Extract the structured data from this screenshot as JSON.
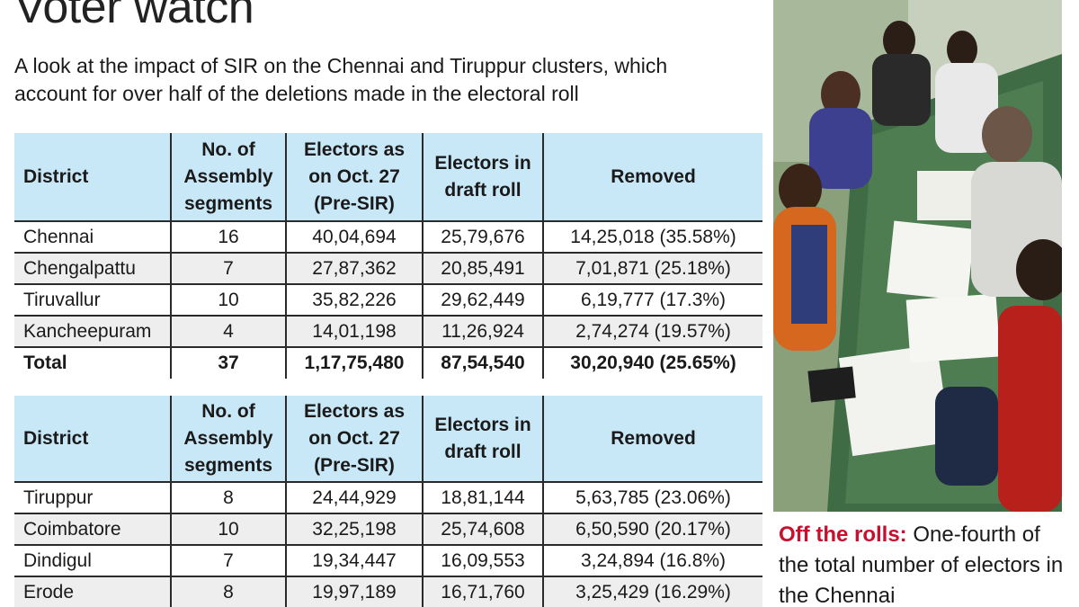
{
  "header": {
    "title": "Voter watch",
    "subtitle": "A look at the impact of SIR on the Chennai and Tiruppur clusters, which account for over half of the deletions made in the electoral roll"
  },
  "table1": {
    "headers": [
      "District",
      "No. of Assembly segments",
      "Electors as on Oct. 27 (Pre-SIR)",
      "Electors in draft roll",
      "Removed"
    ],
    "rows": [
      [
        "Chennai",
        "16",
        "40,04,694",
        "25,79,676",
        "14,25,018 (35.58%)"
      ],
      [
        "Chengalpattu",
        "7",
        "27,87,362",
        "20,85,491",
        "7,01,871 (25.18%)"
      ],
      [
        "Tiruvallur",
        "10",
        "35,82,226",
        "29,62,449",
        "6,19,777 (17.3%)"
      ],
      [
        "Kancheepuram",
        "4",
        "14,01,198",
        "11,26,924",
        "2,74,274 (19.57%)"
      ]
    ],
    "total": [
      "Total",
      "37",
      "1,17,75,480",
      "87,54,540",
      "30,20,940 (25.65%)"
    ]
  },
  "table2": {
    "headers": [
      "District",
      "No. of Assembly segments",
      "Electors as on Oct. 27 (Pre-SIR)",
      "Electors in draft roll",
      "Removed"
    ],
    "rows": [
      [
        "Tiruppur",
        "8",
        "24,44,929",
        "18,81,144",
        "5,63,785 (23.06%)"
      ],
      [
        "Coimbatore",
        "10",
        "32,25,198",
        "25,74,608",
        "6,50,590 (20.17%)"
      ],
      [
        "Dindigul",
        "7",
        "19,34,447",
        "16,09,553",
        "3,24,894 (16.8%)"
      ],
      [
        "Erode",
        "8",
        "19,97,189",
        "16,71,760",
        "3,25,429 (16.29%)"
      ]
    ]
  },
  "caption": {
    "lead": "Off the rolls:",
    "text": " One-fourth of the total number of electors in the Chennai"
  }
}
